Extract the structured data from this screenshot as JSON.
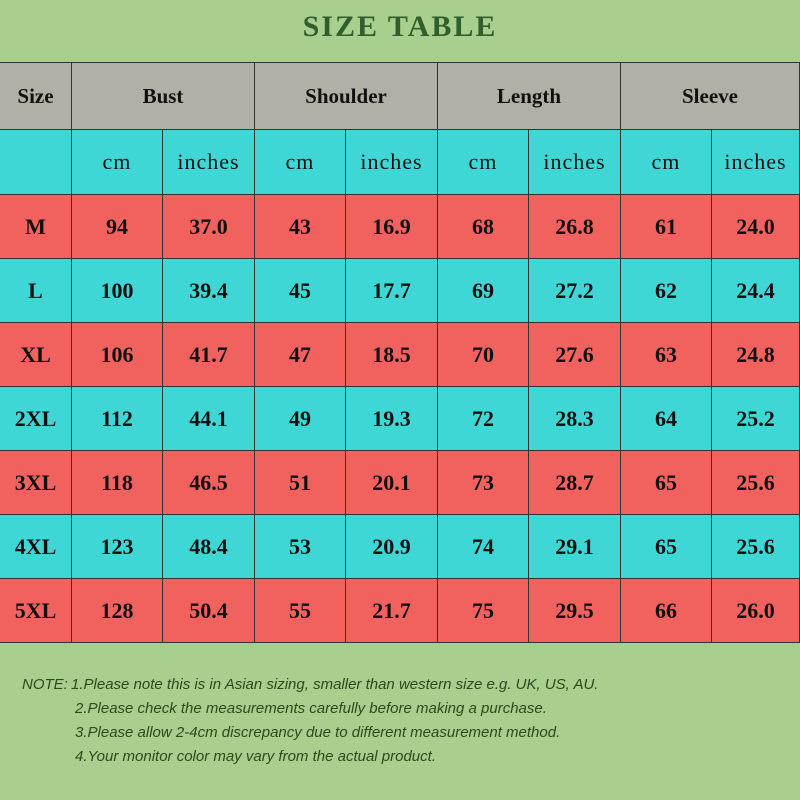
{
  "title": "SIZE TABLE",
  "table": {
    "header": [
      "Size",
      "Bust",
      "Shoulder",
      "Length",
      "Sleeve"
    ],
    "units": [
      "cm",
      "inches",
      "cm",
      "inches",
      "cm",
      "inches",
      "cm",
      "inches"
    ],
    "rows": [
      [
        "M",
        "94",
        "37.0",
        "43",
        "16.9",
        "68",
        "26.8",
        "61",
        "24.0"
      ],
      [
        "L",
        "100",
        "39.4",
        "45",
        "17.7",
        "69",
        "27.2",
        "62",
        "24.4"
      ],
      [
        "XL",
        "106",
        "41.7",
        "47",
        "18.5",
        "70",
        "27.6",
        "63",
        "24.8"
      ],
      [
        "2XL",
        "112",
        "44.1",
        "49",
        "19.3",
        "72",
        "28.3",
        "64",
        "25.2"
      ],
      [
        "3XL",
        "118",
        "46.5",
        "51",
        "20.1",
        "73",
        "28.7",
        "65",
        "25.6"
      ],
      [
        "4XL",
        "123",
        "48.4",
        "53",
        "20.9",
        "74",
        "29.1",
        "65",
        "25.6"
      ],
      [
        "5XL",
        "128",
        "50.4",
        "55",
        "21.7",
        "75",
        "29.5",
        "66",
        "26.0"
      ]
    ]
  },
  "note_label": "NOTE:",
  "notes": [
    "1.Please note this is in Asian sizing, smaller than western size e.g. UK, US, AU.",
    "2.Please check the measurements carefully before making a purchase.",
    "3.Please allow 2-4cm discrepancy due to different measurement method.",
    "4.Your monitor color may vary from the actual product."
  ]
}
